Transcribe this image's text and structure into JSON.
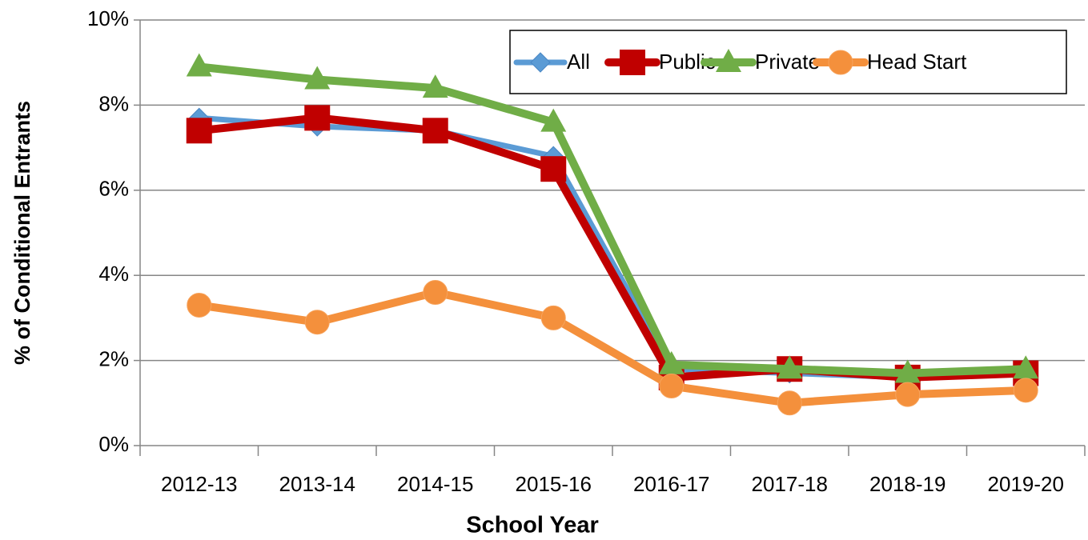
{
  "chart_data": {
    "type": "line",
    "xlabel": "School Year",
    "ylabel": "% of Conditional Entrants",
    "categories": [
      "2012-13",
      "2013-14",
      "2014-15",
      "2015-16",
      "2016-17",
      "2017-18",
      "2018-19",
      "2019-20"
    ],
    "series": [
      {
        "name": "All",
        "color": "#5b9bd5",
        "marker": "diamond",
        "values": [
          7.7,
          7.5,
          7.4,
          6.8,
          1.8,
          1.7,
          1.6,
          1.7
        ]
      },
      {
        "name": "Public",
        "color": "#c00000",
        "marker": "square",
        "values": [
          7.4,
          7.7,
          7.4,
          6.5,
          1.6,
          1.8,
          1.6,
          1.7
        ]
      },
      {
        "name": "Private",
        "color": "#70ad47",
        "marker": "triangle",
        "values": [
          8.9,
          8.6,
          8.4,
          7.6,
          1.9,
          1.8,
          1.7,
          1.8
        ]
      },
      {
        "name": "Head Start",
        "color": "#f4903c",
        "marker": "circle",
        "values": [
          3.3,
          2.9,
          3.6,
          3.0,
          1.4,
          1.0,
          1.2,
          1.3
        ]
      }
    ],
    "ylim": [
      0,
      10
    ],
    "yticks": [
      {
        "value": 0,
        "label": "0%"
      },
      {
        "value": 2,
        "label": "2%"
      },
      {
        "value": 4,
        "label": "4%"
      },
      {
        "value": 6,
        "label": "6%"
      },
      {
        "value": 8,
        "label": "8%"
      },
      {
        "value": 10,
        "label": "10%"
      }
    ],
    "grid": true,
    "legend": "top-right"
  }
}
